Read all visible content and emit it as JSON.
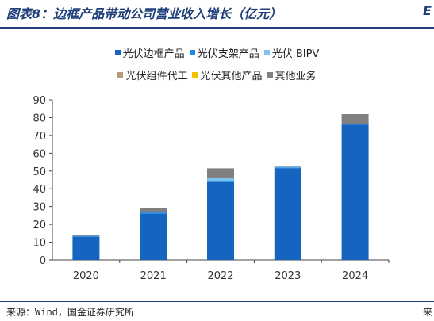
{
  "header": {
    "title": "图表8：边框产品带动公司营业收入增长（亿元）",
    "right_fragment": "E"
  },
  "footer": {
    "source": "来源：Wind，国金证券研究所",
    "right_fragment": "来"
  },
  "chart_data": {
    "type": "bar",
    "stacked": true,
    "categories": [
      "2020",
      "2021",
      "2022",
      "2023",
      "2024"
    ],
    "ylim": [
      0,
      90
    ],
    "yticks": [
      0,
      10,
      20,
      30,
      40,
      50,
      60,
      70,
      80,
      90
    ],
    "series": [
      {
        "name": "光伏边框产品",
        "color": "#1565c0",
        "values": [
          13.0,
          26.0,
          44.0,
          51.5,
          76.0
        ]
      },
      {
        "name": "光伏支架产品",
        "color": "#1e88e5",
        "values": [
          0.5,
          0.7,
          0.5,
          0.5,
          0.3
        ]
      },
      {
        "name": "光伏 BIPV",
        "color": "#7cc3f0",
        "values": [
          0.0,
          0.0,
          1.5,
          0.4,
          0.2
        ]
      },
      {
        "name": "光伏组件代工",
        "color": "#b89c74",
        "values": [
          0.0,
          0.0,
          0.0,
          0.0,
          0.0
        ]
      },
      {
        "name": "光伏其他产品",
        "color": "#f2c200",
        "values": [
          0.0,
          0.0,
          0.0,
          0.0,
          0.0
        ]
      },
      {
        "name": "其他业务",
        "color": "#808080",
        "values": [
          0.5,
          2.5,
          5.5,
          0.4,
          5.5
        ]
      }
    ],
    "legend_rows": [
      [
        0,
        1,
        2
      ],
      [
        3,
        4,
        5
      ]
    ],
    "legend_position": "top",
    "grid": false
  }
}
